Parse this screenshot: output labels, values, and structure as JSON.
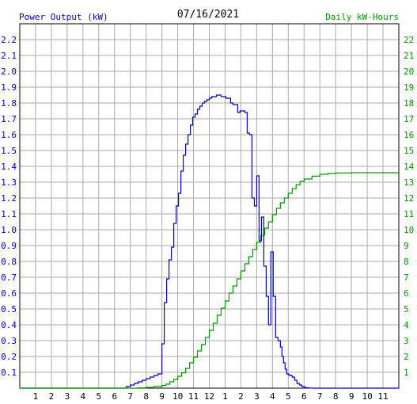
{
  "chart_data": {
    "type": "line",
    "title": "07/16/2021",
    "left_axis_label": "Power Output (kW)",
    "right_axis_label": "Daily kW-Hours",
    "colors": {
      "power": "#0000cc",
      "energy": "#009900",
      "grid": "#aaaaaa",
      "left_text": "#0000cc",
      "right_text": "#009900"
    },
    "grid": true,
    "x_ticks": [
      "1",
      "2",
      "3",
      "4",
      "5",
      "6",
      "7",
      "8",
      "9",
      "10",
      "11",
      "12",
      "1",
      "2",
      "3",
      "4",
      "5",
      "6",
      "7",
      "8",
      "9",
      "10",
      "11"
    ],
    "y_left_ticks": [
      "0.1",
      "0.2",
      "0.3",
      "0.4",
      "0.5",
      "0.6",
      "0.7",
      "0.8",
      "0.9",
      "1.0",
      "1.1",
      "1.2",
      "1.3",
      "1.4",
      "1.5",
      "1.6",
      "1.7",
      "1.8",
      "1.9",
      "2.0",
      "2.1",
      "2.2"
    ],
    "y_right_ticks": [
      "1",
      "2",
      "3",
      "4",
      "5",
      "6",
      "7",
      "8",
      "9",
      "10",
      "11",
      "12",
      "13",
      "14",
      "15",
      "16",
      "17",
      "18",
      "19",
      "20",
      "21",
      "22"
    ],
    "xlim": [
      0,
      24
    ],
    "ylim_left": [
      0,
      2.3
    ],
    "ylim_right": [
      0,
      23
    ],
    "series": [
      {
        "name": "Power Output (kW)",
        "axis": "left",
        "x": [
          0,
          6.75,
          7.0,
          7.25,
          7.5,
          7.75,
          8.0,
          8.25,
          8.5,
          8.75,
          9.0,
          9.15,
          9.3,
          9.45,
          9.6,
          9.75,
          9.9,
          10.05,
          10.2,
          10.35,
          10.5,
          10.65,
          10.8,
          10.95,
          11.1,
          11.25,
          11.4,
          11.55,
          11.7,
          11.85,
          12.0,
          12.15,
          12.3,
          12.45,
          12.6,
          12.75,
          12.9,
          13.05,
          13.2,
          13.35,
          13.5,
          13.65,
          13.8,
          13.95,
          14.1,
          14.25,
          14.4,
          14.55,
          14.7,
          14.85,
          15.0,
          15.15,
          15.3,
          15.45,
          15.6,
          15.75,
          15.9,
          16.05,
          16.2,
          16.35,
          16.5,
          16.6,
          16.7,
          16.8,
          16.9,
          17.0,
          17.1,
          17.25,
          17.4,
          17.55,
          17.7,
          17.85,
          18.0,
          18.1,
          18.2,
          18.3,
          18.45,
          18.6,
          18.75,
          18.9,
          19.05,
          19.2,
          19.5,
          19.8,
          20.1,
          20.4,
          20.7,
          21.0,
          21.3,
          21.6,
          24
        ],
        "y": [
          0,
          0.01,
          0.02,
          0.03,
          0.04,
          0.05,
          0.06,
          0.07,
          0.08,
          0.09,
          0.28,
          0.54,
          0.69,
          0.81,
          0.89,
          1.04,
          1.15,
          1.23,
          1.37,
          1.47,
          1.54,
          1.6,
          1.66,
          1.71,
          1.73,
          1.76,
          1.78,
          1.8,
          1.81,
          1.82,
          1.83,
          1.84,
          1.84,
          1.85,
          1.85,
          1.84,
          1.84,
          1.83,
          1.83,
          1.8,
          1.79,
          1.79,
          1.74,
          1.75,
          1.75,
          1.74,
          1.61,
          1.6,
          1.2,
          1.15,
          1.34,
          0.93,
          1.08,
          0.77,
          0.58,
          0.4,
          0.86,
          0.58,
          0.32,
          0.3,
          0.26,
          0.2,
          0.16,
          0.12,
          0.09,
          0.085,
          0.08,
          0.07,
          0.05,
          0.03,
          0.02,
          0.01,
          0.005,
          0.003,
          0.002,
          0.001,
          0.0005,
          0,
          0,
          0,
          0,
          0,
          0,
          0,
          0,
          0,
          0,
          0,
          0,
          0,
          0
        ]
      },
      {
        "name": "Daily kW-Hours",
        "axis": "right",
        "x": [
          0,
          7.5,
          8.0,
          8.5,
          9.0,
          9.25,
          9.5,
          9.75,
          10.0,
          10.25,
          10.5,
          10.75,
          11.0,
          11.25,
          11.5,
          11.75,
          12.0,
          12.25,
          12.5,
          12.75,
          13.0,
          13.25,
          13.5,
          13.75,
          14.0,
          14.25,
          14.5,
          14.75,
          15.0,
          15.25,
          15.5,
          15.75,
          16.0,
          16.25,
          16.5,
          16.75,
          17.0,
          17.25,
          17.5,
          17.75,
          18.0,
          18.5,
          19.0,
          19.5,
          20.0,
          21.0,
          22.0,
          23.0,
          24.0
        ],
        "y": [
          0,
          0.02,
          0.05,
          0.1,
          0.17,
          0.25,
          0.4,
          0.55,
          0.75,
          0.97,
          1.25,
          1.6,
          1.95,
          2.35,
          2.75,
          3.2,
          3.65,
          4.1,
          4.6,
          5.05,
          5.5,
          6.0,
          6.45,
          6.9,
          7.4,
          7.85,
          8.3,
          8.75,
          9.2,
          9.65,
          10.1,
          10.5,
          10.95,
          11.35,
          11.7,
          12.0,
          12.3,
          12.6,
          12.85,
          13.05,
          13.2,
          13.38,
          13.5,
          13.55,
          13.58,
          13.6,
          13.6,
          13.6,
          13.6
        ]
      }
    ]
  }
}
